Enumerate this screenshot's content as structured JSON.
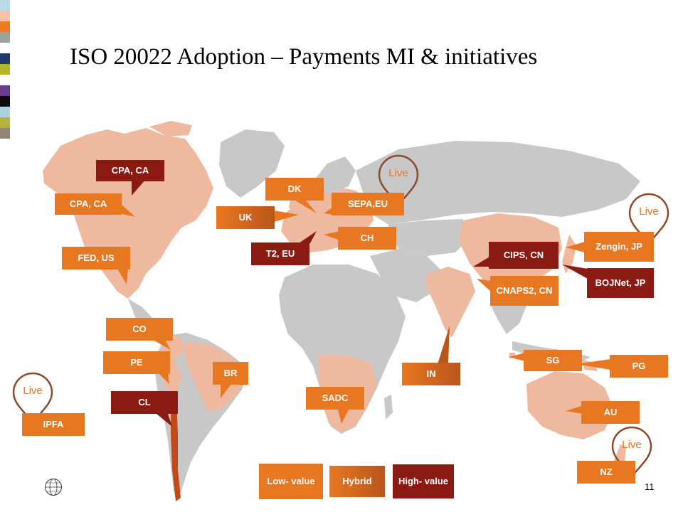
{
  "title": "ISO 20022 Adoption  – Payments MI & initiatives",
  "colors": {
    "low_value": "#e87722",
    "high_value": "#8b1a12",
    "land_grey": "#c8c8c8",
    "land_highlight": "#efb9a0",
    "live_pin": "#8b4a2b"
  },
  "stripes": [
    "#b9dbe6",
    "#f7c3a4",
    "#f07b22",
    "#9aa49e",
    "#ffffff",
    "#1f3b6e",
    "#b8b428",
    "#ffffff",
    "#6a3a8c",
    "#0b0b0b",
    "#a7d3e3",
    "#b6b43a",
    "#908676"
  ],
  "labels": {
    "cpa_ca_1": "CPA, CA",
    "cpa_ca_2": "CPA, CA",
    "fed_us": "FED, US",
    "dk": "DK",
    "uk": "UK",
    "sepa_eu": "SEPA,EU",
    "ch": "CH",
    "t2_eu": "T2, EU",
    "cips_cn": "CIPS, CN",
    "cnaps2_cn": "CNAPS2, CN",
    "zengin_jp": "Zengin, JP",
    "bojnet_jp": "BOJNet, JP",
    "co": "CO",
    "pe": "PE",
    "br": "BR",
    "cl": "CL",
    "in": "IN",
    "sadc": "SADC",
    "sg": "SG",
    "pg": "PG",
    "au": "AU",
    "nz": "NZ",
    "ipfa": "IPFA"
  },
  "live_text": "Live",
  "legend": {
    "low_value": "Low- value",
    "hybrid": "Hybrid",
    "high_value": "High- value"
  },
  "page_number": "11",
  "logo_icon": "swift-globe-icon"
}
